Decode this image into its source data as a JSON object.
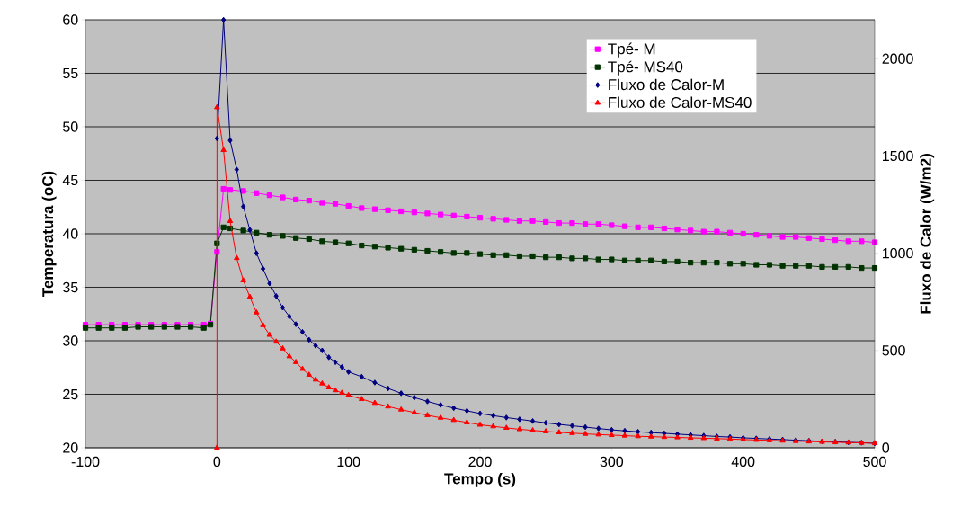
{
  "chart_data": {
    "type": "line",
    "xlabel": "Tempo (s)",
    "ylabel": "Temperatura (oC)",
    "y2label": "Fluxo de Calor (W/m2)",
    "xlim": [
      -100,
      500
    ],
    "xticks": [
      -100,
      0,
      100,
      200,
      300,
      400,
      500
    ],
    "ylim": [
      20,
      60
    ],
    "yticks": [
      20,
      25,
      30,
      35,
      40,
      45,
      50,
      55,
      60
    ],
    "y2lim": [
      0,
      2200
    ],
    "y2ticks": [
      0,
      500,
      1000,
      1500,
      2000
    ],
    "grid": "y",
    "legend": "top right",
    "series": [
      {
        "name": "Tpé- M",
        "color": "#ff00ff",
        "marker": "square",
        "x": [
          -100,
          -90,
          -80,
          -70,
          -60,
          -50,
          -40,
          -30,
          -20,
          -10,
          -5,
          0,
          5,
          10,
          20,
          30,
          40,
          50,
          60,
          70,
          80,
          90,
          100,
          110,
          120,
          130,
          140,
          150,
          160,
          170,
          180,
          190,
          200,
          210,
          220,
          230,
          240,
          250,
          260,
          270,
          280,
          290,
          300,
          310,
          320,
          330,
          340,
          350,
          360,
          370,
          380,
          390,
          400,
          410,
          420,
          430,
          440,
          450,
          460,
          470,
          480,
          490,
          500
        ],
        "values": [
          31.5,
          31.5,
          31.5,
          31.5,
          31.5,
          31.5,
          31.5,
          31.5,
          31.5,
          31.5,
          31.6,
          38.3,
          44.2,
          44.1,
          44.0,
          43.8,
          43.6,
          43.4,
          43.2,
          43.1,
          42.9,
          42.8,
          42.6,
          42.4,
          42.3,
          42.2,
          42.1,
          42.0,
          41.9,
          41.8,
          41.7,
          41.6,
          41.5,
          41.4,
          41.3,
          41.2,
          41.2,
          41.1,
          41.0,
          41.0,
          40.9,
          40.9,
          40.8,
          40.7,
          40.6,
          40.6,
          40.5,
          40.4,
          40.3,
          40.2,
          40.2,
          40.1,
          40.0,
          39.9,
          39.8,
          39.7,
          39.7,
          39.6,
          39.5,
          39.4,
          39.3,
          39.3,
          39.2
        ]
      },
      {
        "name": "Tpé- MS40",
        "color": "#003300",
        "marker": "square",
        "x": [
          -100,
          -90,
          -80,
          -70,
          -60,
          -50,
          -40,
          -30,
          -20,
          -10,
          -5,
          0,
          5,
          10,
          20,
          30,
          40,
          50,
          60,
          70,
          80,
          90,
          100,
          110,
          120,
          130,
          140,
          150,
          160,
          170,
          180,
          190,
          200,
          210,
          220,
          230,
          240,
          250,
          260,
          270,
          280,
          290,
          300,
          310,
          320,
          330,
          340,
          350,
          360,
          370,
          380,
          390,
          400,
          410,
          420,
          430,
          440,
          450,
          460,
          470,
          480,
          490,
          500
        ],
        "values": [
          31.2,
          31.2,
          31.2,
          31.2,
          31.3,
          31.3,
          31.3,
          31.3,
          31.3,
          31.2,
          31.5,
          39.1,
          40.6,
          40.5,
          40.3,
          40.1,
          39.9,
          39.8,
          39.6,
          39.5,
          39.3,
          39.2,
          39.1,
          38.9,
          38.8,
          38.7,
          38.6,
          38.5,
          38.4,
          38.3,
          38.2,
          38.2,
          38.1,
          38.0,
          38.0,
          37.9,
          37.9,
          37.8,
          37.8,
          37.7,
          37.7,
          37.6,
          37.6,
          37.5,
          37.5,
          37.5,
          37.4,
          37.4,
          37.3,
          37.3,
          37.3,
          37.2,
          37.2,
          37.1,
          37.1,
          37.0,
          37.0,
          37.0,
          36.9,
          36.9,
          36.9,
          36.8,
          36.8
        ]
      },
      {
        "name": "Fluxo de Calor-M",
        "color": "#000080",
        "marker": "diamond",
        "axis": "y2",
        "x": [
          0,
          5,
          10,
          15,
          20,
          25,
          30,
          35,
          40,
          45,
          50,
          55,
          60,
          65,
          70,
          75,
          80,
          85,
          90,
          95,
          100,
          110,
          120,
          130,
          140,
          150,
          160,
          170,
          180,
          190,
          200,
          210,
          220,
          230,
          240,
          250,
          260,
          270,
          280,
          290,
          300,
          310,
          320,
          330,
          340,
          350,
          360,
          370,
          380,
          390,
          400,
          410,
          420,
          430,
          440,
          450,
          460,
          470,
          480,
          490,
          500
        ],
        "values": [
          1590,
          2200,
          1580,
          1430,
          1240,
          1120,
          1000,
          920,
          845,
          780,
          720,
          675,
          635,
          595,
          555,
          525,
          500,
          465,
          440,
          415,
          390,
          365,
          335,
          305,
          280,
          258,
          238,
          220,
          204,
          190,
          176,
          165,
          155,
          146,
          137,
          128,
          120,
          113,
          106,
          99,
          92,
          87,
          82,
          78,
          74,
          70,
          66,
          62,
          58,
          55,
          51,
          48,
          45,
          42,
          39,
          36,
          33,
          31,
          28,
          26,
          23
        ]
      },
      {
        "name": "Fluxo de Calor-MS40",
        "color": "#ff0000",
        "marker": "triangle",
        "axis": "y2",
        "x": [
          0,
          0,
          5,
          10,
          15,
          20,
          25,
          30,
          35,
          40,
          45,
          50,
          55,
          60,
          65,
          70,
          75,
          80,
          85,
          90,
          95,
          100,
          110,
          120,
          130,
          140,
          150,
          160,
          170,
          180,
          190,
          200,
          210,
          220,
          230,
          240,
          250,
          260,
          270,
          280,
          290,
          300,
          310,
          320,
          330,
          340,
          350,
          360,
          370,
          380,
          390,
          400,
          410,
          420,
          430,
          440,
          450,
          460,
          470,
          480,
          490,
          500
        ],
        "values": [
          0,
          1750,
          1530,
          1165,
          975,
          860,
          775,
          695,
          630,
          580,
          545,
          510,
          470,
          440,
          405,
          375,
          350,
          330,
          310,
          295,
          282,
          270,
          250,
          230,
          212,
          196,
          181,
          167,
          154,
          142,
          130,
          118,
          110,
          102,
          95,
          89,
          84,
          79,
          75,
          71,
          68,
          65,
          62,
          59,
          57,
          55,
          53,
          51,
          49,
          47,
          45,
          42,
          40,
          38,
          36,
          34,
          32,
          30,
          28,
          27,
          25,
          23
        ]
      }
    ]
  }
}
